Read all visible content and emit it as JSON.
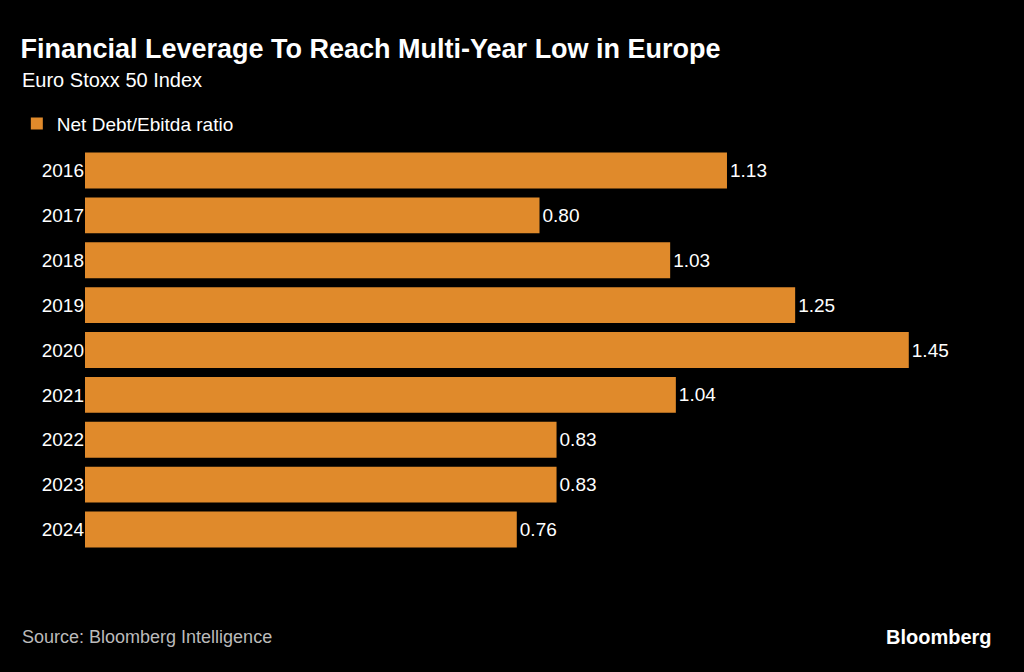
{
  "chart_data": {
    "type": "bar",
    "orientation": "horizontal",
    "title": "Financial Leverage To Reach Multi-Year Low in Europe",
    "subtitle": "Euro Stoxx 50 Index",
    "annotations": [
      "Source: Bloomberg Intelligence",
      "Bloomberg"
    ],
    "categories": [
      "2016",
      "2017",
      "2018",
      "2019",
      "2020",
      "2021",
      "2022",
      "2023",
      "2024"
    ],
    "series": [
      {
        "name": "Net Debt/Ebitda ratio",
        "color": "#e08a2b",
        "values": [
          1.13,
          0.8,
          1.03,
          1.25,
          1.45,
          1.04,
          0.83,
          0.83,
          0.76
        ],
        "value_labels": [
          "1.13",
          "0.80",
          "1.03",
          "1.25",
          "1.45",
          "1.04",
          "0.83",
          "0.83",
          "0.76"
        ]
      }
    ],
    "xlim": [
      0,
      1.6
    ],
    "xticks": [],
    "grid": false,
    "legend": "top-left",
    "data_labels": true,
    "tick_labels": "y"
  }
}
